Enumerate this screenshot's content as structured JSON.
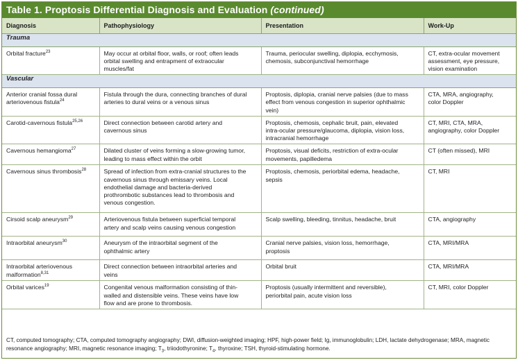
{
  "title": {
    "main": "Table 1. Proptosis Differential Diagnosis and Evaluation ",
    "cont": "(continued)"
  },
  "headers": [
    "Diagnosis",
    "Pathophysiology",
    "Presentation",
    "Work-Up"
  ],
  "sections": [
    {
      "name": "Trauma",
      "rows": [
        {
          "diagnosis": "Orbital fracture",
          "ref": "23",
          "pathophysiology": "May occur at orbital floor, walls, or roof; often leads\norbital swelling and entrapment of extraocular\nmuscles/fat",
          "presentation": "Trauma, periocular swelling, diplopia, ecchymosis,\nchemosis, subconjunctival hemorrhage",
          "workup": "CT, extra-ocular movement\nassessment, eye pressure,\nvision examination"
        }
      ]
    },
    {
      "name": "Vascular",
      "rows": [
        {
          "diagnosis": "Anterior cranial fossa dural\narteriovenous fistula",
          "ref": "24",
          "pathophysiology": "Fistula through the dura, connecting branches of dural\narteries to dural veins or a venous sinus",
          "presentation": "Proptosis, diplopia, cranial nerve palsies (due to mass\neffect from venous congestion in superior ophthalmic\nvein)",
          "workup": "CTA, MRA, angiography,\ncolor Doppler"
        },
        {
          "diagnosis": "Carotid-cavernous fistula",
          "ref": "25,26",
          "pathophysiology": "Direct connection between carotid artery and\ncavernous sinus",
          "presentation": "Proptosis, chemosis, cephalic bruit, pain, elevated\nintra-ocular pressure/glaucoma, diplopia, vision loss,\nintracranial hemorrhage",
          "workup": "CT, MRI, CTA, MRA,\nangiography, color Doppler"
        },
        {
          "diagnosis": "Cavernous hemangioma",
          "ref": "27",
          "pathophysiology": "Dilated cluster of veins forming a slow-growing tumor,\nleading to mass effect within the orbit",
          "presentation": "Proptosis, visual deficits, restriction of extra-ocular\nmovements, papilledema",
          "workup": "CT (often missed), MRI"
        },
        {
          "diagnosis": "Cavernous sinus thrombosis",
          "ref": "28",
          "pathophysiology": "Spread of infection from extra-cranial structures to the\ncavernous sinus through emissary veins. Local\nendothelial damage and bacteria-derived\nprothrombotic substances lead to thrombosis and\nvenous congestion.",
          "presentation": "Proptosis, chemosis, periorbital edema, headache,\nsepsis",
          "workup": "CT, MRI"
        },
        {
          "diagnosis": "Cirsoid scalp aneurysm",
          "ref": "29",
          "pathophysiology": "Arteriovenous fistula between superficial temporal\nartery and scalp veins causing venous congestion",
          "presentation": "Scalp swelling, bleeding, tinnitus, headache, bruit",
          "workup": "CTA, angiography"
        },
        {
          "diagnosis": "Intraorbital aneurysm",
          "ref": "30",
          "pathophysiology": "Aneurysm of the intraorbital segment of the\nophthalmic artery",
          "presentation": "Cranial nerve palsies, vision loss, hemorrhage,\nproptosis",
          "workup": "CTA, MRI/MRA"
        },
        {
          "diagnosis": "Intraorbital arteriovenous\nmalformation",
          "ref": "8,31",
          "pathophysiology": "Direct connection between intraorbital arteries and\nveins",
          "presentation": "Orbital bruit",
          "workup": "CTA, MRI/MRA"
        },
        {
          "diagnosis": "Orbital varices",
          "ref": "19",
          "pathophysiology": "Congenital venous malformation consisting of thin-\nwalled and distensible veins. These veins have low\nflow and are prone to thrombosis.",
          "presentation": "Proptosis (usually intermittent and reversible),\nperiorbital pain, acute vision loss",
          "workup": "CT, MRI, color Doppler"
        }
      ]
    }
  ],
  "footnote": {
    "part1": "CT, computed tomography; CTA, computed tomography angiography; DWI, diffusion-weighted imaging; HPF, high-power field; Ig, immunoglobulin; LDH, lactate dehydrogenase; MRA, magnetic resonance angiography; MRI, magnetic resonance imaging; T",
    "sub1": "3",
    "part2": ", triiodothyronine; T",
    "sub2": "4",
    "part3": ", thyroxine; TSH, thyroid-stimulating hormone."
  },
  "colors": {
    "title_bg": "#5a8a2e",
    "header_bg": "#d9e4c7",
    "section_bg": "#dbe3ef",
    "rule": "#9fb386"
  }
}
